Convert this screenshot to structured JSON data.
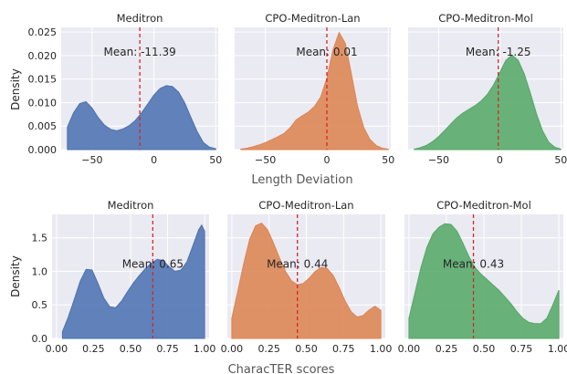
{
  "colors": {
    "panel_bg": "#eaeaf2",
    "grid": "#ffffff",
    "mean_line": "#d62728",
    "text": "#262626",
    "axis_label": "#555555",
    "blue": "#4c72b0",
    "orange": "#dd8452",
    "green": "#55a868"
  },
  "rows": [
    {
      "xlabel": "Length Deviation",
      "ylabel": "Density",
      "xlim": [
        -75,
        52
      ],
      "ylim": [
        0,
        0.026
      ],
      "xticks": [
        -50,
        0,
        50
      ],
      "xtick_labels": [
        "−50",
        "0",
        "50"
      ],
      "yticks": [
        0,
        0.005,
        0.01,
        0.015,
        0.02,
        0.025
      ],
      "ytick_labels": [
        "0.000",
        "0.005",
        "0.010",
        "0.015",
        "0.020",
        "0.025"
      ],
      "ytick_labels_shown_on_first_panel_only": true
    },
    {
      "xlabel": "CharacTER scores",
      "ylabel": "Density",
      "xlim": [
        -0.03,
        1.03
      ],
      "ylim": [
        0,
        1.85
      ],
      "xticks": [
        0,
        0.25,
        0.5,
        0.75,
        1.0
      ],
      "xtick_labels": [
        "0.00",
        "0.25",
        "0.50",
        "0.75",
        "1.00"
      ],
      "yticks": [
        0,
        0.5,
        1.0,
        1.5
      ],
      "ytick_labels": [
        "0.0",
        "0.5",
        "1.0",
        "1.5"
      ],
      "ytick_labels_shown_on_first_panel_only": true
    }
  ],
  "chart_data": [
    {
      "type": "area",
      "row": 0,
      "col": 0,
      "title": "Meditron",
      "color": "blue",
      "mean": -11.39,
      "mean_label": "Mean: -11.39",
      "x": [
        -70,
        -65,
        -60,
        -55,
        -50,
        -45,
        -40,
        -35,
        -30,
        -25,
        -20,
        -15,
        -10,
        -5,
        0,
        5,
        10,
        15,
        20,
        25,
        30,
        35,
        40,
        45,
        50
      ],
      "y": [
        0.0048,
        0.0078,
        0.0098,
        0.0102,
        0.0088,
        0.0068,
        0.0052,
        0.0043,
        0.004,
        0.0044,
        0.0051,
        0.0062,
        0.0078,
        0.0097,
        0.0116,
        0.013,
        0.0136,
        0.0134,
        0.0122,
        0.0099,
        0.0068,
        0.0038,
        0.0015,
        0.0005,
        0.0002
      ]
    },
    {
      "type": "area",
      "row": 0,
      "col": 1,
      "title": "CPO-Meditron-Lan",
      "color": "orange",
      "mean": 0.01,
      "mean_label": "Mean: 0.01",
      "x": [
        -70,
        -65,
        -60,
        -55,
        -50,
        -45,
        -40,
        -35,
        -30,
        -25,
        -20,
        -15,
        -10,
        -5,
        0,
        5,
        10,
        15,
        20,
        25,
        30,
        35,
        40,
        45,
        50
      ],
      "y": [
        0.0001,
        0.0003,
        0.0006,
        0.001,
        0.0015,
        0.0021,
        0.0027,
        0.0034,
        0.0046,
        0.0063,
        0.0072,
        0.008,
        0.0092,
        0.0112,
        0.0152,
        0.0212,
        0.0249,
        0.0226,
        0.016,
        0.0092,
        0.0047,
        0.0022,
        0.0009,
        0.0003,
        0.0001
      ]
    },
    {
      "type": "area",
      "row": 0,
      "col": 2,
      "title": "CPO-Meditron-Mol",
      "color": "green",
      "mean": -1.25,
      "mean_label": "Mean: -1.25",
      "x": [
        -70,
        -65,
        -60,
        -55,
        -50,
        -45,
        -40,
        -35,
        -30,
        -25,
        -20,
        -15,
        -10,
        -5,
        0,
        5,
        10,
        15,
        20,
        25,
        30,
        35,
        40,
        45,
        50
      ],
      "y": [
        0.0001,
        0.0004,
        0.0009,
        0.0017,
        0.0028,
        0.0041,
        0.0055,
        0.0068,
        0.0078,
        0.0086,
        0.0094,
        0.0104,
        0.0118,
        0.0138,
        0.0164,
        0.019,
        0.0201,
        0.019,
        0.0161,
        0.012,
        0.0076,
        0.004,
        0.0016,
        0.0005,
        0.0001
      ]
    },
    {
      "type": "area",
      "row": 1,
      "col": 0,
      "title": "Meditron",
      "color": "blue",
      "mean": 0.65,
      "mean_label": "Mean: 0.65",
      "x": [
        0.04,
        0.08,
        0.12,
        0.16,
        0.2,
        0.24,
        0.28,
        0.32,
        0.36,
        0.4,
        0.44,
        0.48,
        0.52,
        0.56,
        0.6,
        0.64,
        0.68,
        0.72,
        0.76,
        0.8,
        0.84,
        0.88,
        0.92,
        0.96,
        0.98,
        1.0
      ],
      "y": [
        0.1,
        0.32,
        0.58,
        0.85,
        1.03,
        1.02,
        0.82,
        0.6,
        0.47,
        0.46,
        0.56,
        0.7,
        0.83,
        0.94,
        1.04,
        1.12,
        1.18,
        1.16,
        1.07,
        1.0,
        1.02,
        1.14,
        1.38,
        1.62,
        1.69,
        1.6
      ]
    },
    {
      "type": "area",
      "row": 1,
      "col": 1,
      "title": "CPO-Meditron-Lan",
      "color": "orange",
      "mean": 0.44,
      "mean_label": "Mean: 0.44",
      "x": [
        0.0,
        0.04,
        0.08,
        0.12,
        0.16,
        0.2,
        0.24,
        0.28,
        0.32,
        0.36,
        0.4,
        0.44,
        0.48,
        0.52,
        0.56,
        0.6,
        0.64,
        0.68,
        0.72,
        0.76,
        0.8,
        0.84,
        0.88,
        0.92,
        0.96,
        1.0
      ],
      "y": [
        0.3,
        0.7,
        1.12,
        1.48,
        1.68,
        1.72,
        1.62,
        1.42,
        1.2,
        1.0,
        0.86,
        0.8,
        0.82,
        0.9,
        1.0,
        1.06,
        1.04,
        0.94,
        0.76,
        0.56,
        0.4,
        0.32,
        0.34,
        0.42,
        0.48,
        0.42
      ]
    },
    {
      "type": "area",
      "row": 1,
      "col": 2,
      "title": "CPO-Meditron-Mol",
      "color": "green",
      "mean": 0.43,
      "mean_label": "Mean: 0.43",
      "x": [
        0.0,
        0.04,
        0.08,
        0.12,
        0.16,
        0.2,
        0.24,
        0.28,
        0.32,
        0.36,
        0.4,
        0.44,
        0.48,
        0.52,
        0.56,
        0.6,
        0.64,
        0.68,
        0.72,
        0.76,
        0.8,
        0.84,
        0.88,
        0.92,
        0.96,
        1.0
      ],
      "y": [
        0.3,
        0.68,
        1.06,
        1.36,
        1.56,
        1.66,
        1.71,
        1.7,
        1.6,
        1.42,
        1.22,
        1.06,
        0.96,
        0.88,
        0.8,
        0.72,
        0.62,
        0.52,
        0.4,
        0.3,
        0.24,
        0.22,
        0.22,
        0.3,
        0.5,
        0.72
      ]
    }
  ]
}
